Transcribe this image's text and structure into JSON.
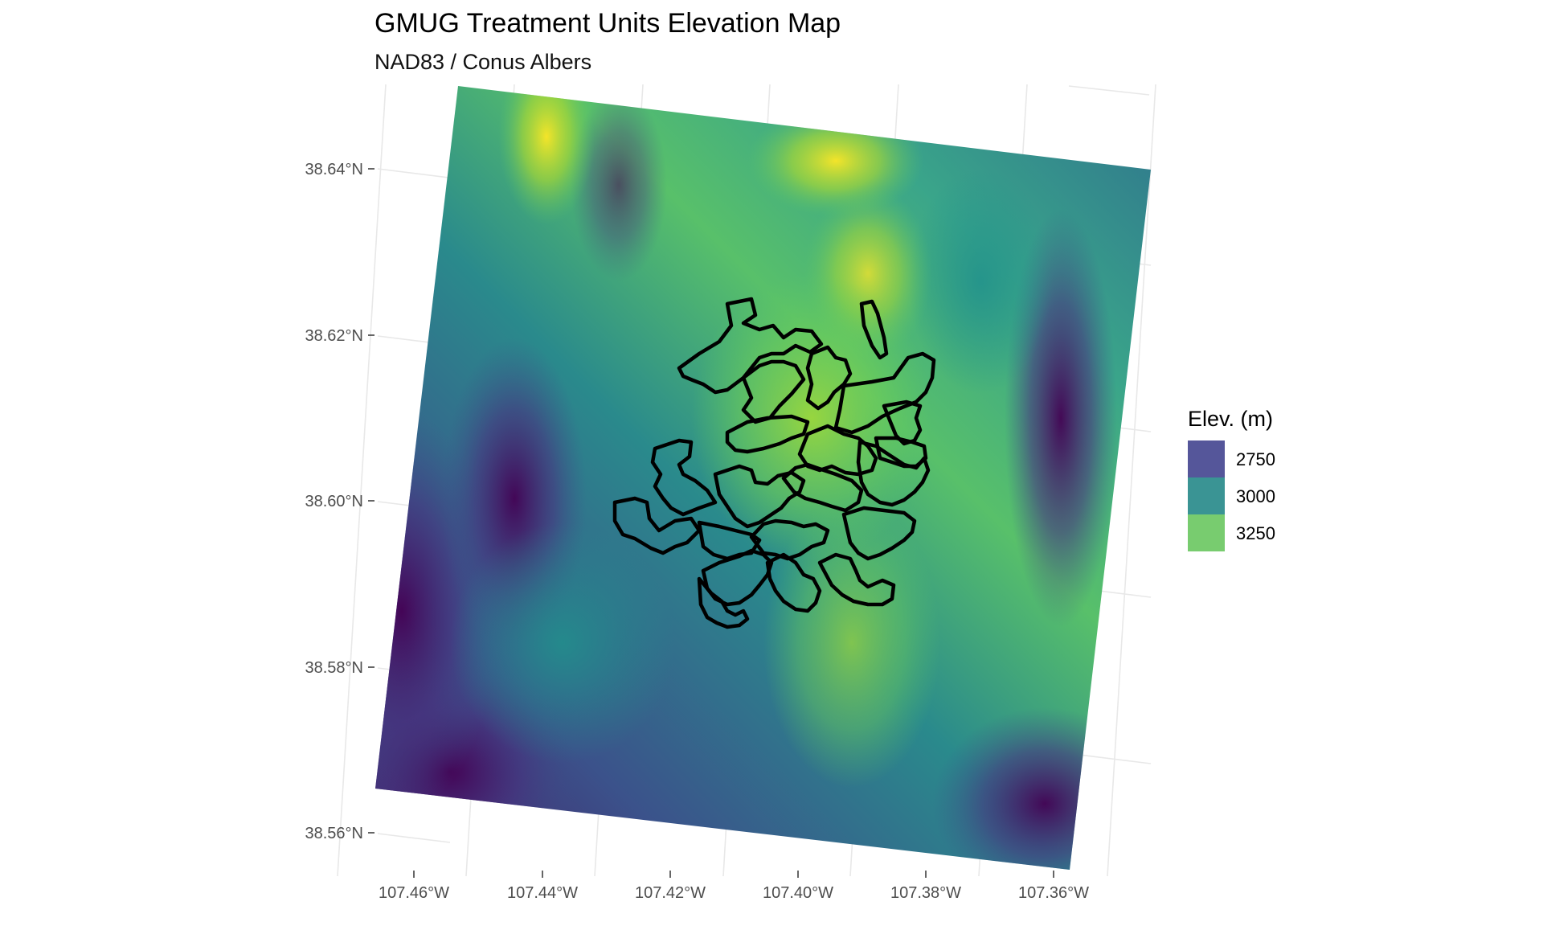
{
  "title": "GMUG Treatment Units Elevation Map",
  "subtitle": "NAD83 / Conus Albers",
  "legend": {
    "title": "Elev. (m)",
    "entries": [
      {
        "label": "2750",
        "color": "#55569a"
      },
      {
        "label": "3000",
        "color": "#3a9494"
      },
      {
        "label": "3250",
        "color": "#78cc6f"
      }
    ]
  },
  "axes": {
    "y_ticks": [
      "38.64°N",
      "38.62°N",
      "38.60°N",
      "38.58°N",
      "38.56°N"
    ],
    "x_ticks": [
      "107.46°W",
      "107.44°W",
      "107.42°W",
      "107.40°W",
      "107.38°W",
      "107.36°W"
    ]
  },
  "colors": {
    "viridis_low": "#440154",
    "viridis_mid_low": "#3b528b",
    "viridis_mid": "#21918c",
    "viridis_mid_high": "#5ec962",
    "viridis_high": "#fde725",
    "outline": "#000000"
  }
}
